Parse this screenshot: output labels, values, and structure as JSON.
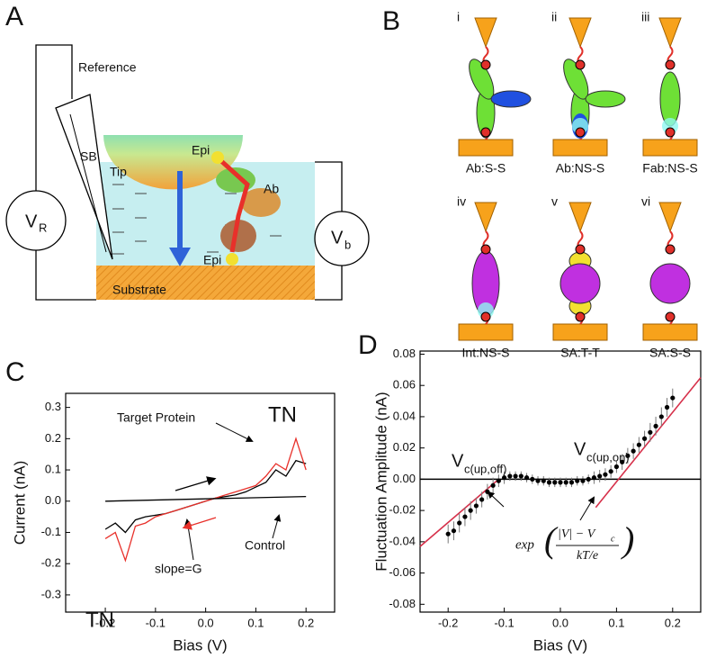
{
  "panel_labels": [
    "A",
    "B",
    "C",
    "D"
  ],
  "diagram_a": {
    "reference": "Reference",
    "sb": "SB",
    "tip": "Tip",
    "epi_top": "Epi",
    "ab": "Ab",
    "epi_bottom": "Epi",
    "v_r": "V",
    "v_r_sub": "R",
    "v_b": "V",
    "v_b_sub": "b",
    "substrate": "Substrate"
  },
  "diagram_b": {
    "items": [
      {
        "numeral": "i",
        "label": "Ab:S-S"
      },
      {
        "numeral": "ii",
        "label": "Ab:NS-S"
      },
      {
        "numeral": "iii",
        "label": "Fab:NS-S"
      },
      {
        "numeral": "iv",
        "label": "Int:NS-S"
      },
      {
        "numeral": "v",
        "label": "SA:T-T"
      },
      {
        "numeral": "vi",
        "label": "SA:S-S"
      }
    ]
  },
  "chart_data": [
    {
      "type": "line",
      "xlabel": "Bias (V)",
      "ylabel": "Current (nA)",
      "xlim": [
        -0.279,
        0.257
      ],
      "ylim": [
        -0.355,
        0.345
      ],
      "xticks": [
        -0.2,
        -0.1,
        {
          "value": 0,
          "label": "0.0"
        },
        0.1,
        0.2
      ],
      "yticks": [
        -0.3,
        -0.2,
        -0.1,
        {
          "value": 0,
          "label": "0.0"
        },
        0.1,
        0.2,
        0.3
      ],
      "series": [
        {
          "color": "#000000",
          "x": [
            -0.2,
            -0.18,
            -0.16,
            -0.14,
            -0.12,
            -0.1,
            -0.08,
            -0.06,
            -0.04,
            -0.02,
            0,
            0.02,
            0.04,
            0.06,
            0.08,
            0.1,
            0.12,
            0.14,
            0.16,
            0.18,
            0.2
          ],
          "values": [
            -0.09,
            -0.07,
            -0.1,
            -0.06,
            -0.05,
            -0.045,
            -0.04,
            -0.03,
            -0.02,
            -0.01,
            0.0,
            0.01,
            0.015,
            0.02,
            0.03,
            0.045,
            0.06,
            0.1,
            0.08,
            0.13,
            0.12
          ]
        },
        {
          "color": "#e8302a",
          "x": [
            -0.2,
            -0.18,
            -0.16,
            -0.14,
            -0.12,
            -0.1,
            -0.08,
            -0.06,
            -0.04,
            -0.02,
            0,
            0.02,
            0.04,
            0.06,
            0.08,
            0.1,
            0.12,
            0.14,
            0.16,
            0.18,
            0.2
          ],
          "values": [
            -0.12,
            -0.1,
            -0.19,
            -0.08,
            -0.07,
            -0.05,
            -0.04,
            -0.03,
            -0.02,
            -0.01,
            0.0,
            0.01,
            0.02,
            0.03,
            0.04,
            0.05,
            0.08,
            0.12,
            0.1,
            0.2,
            0.1
          ]
        },
        {
          "color": "#000000",
          "x": [
            -0.2,
            0.2
          ],
          "values": [
            0.0,
            0.015
          ]
        }
      ],
      "annotations": [
        "Target Protein",
        "TN",
        "TN",
        "Control",
        "slope=G"
      ]
    },
    {
      "type": "scatter",
      "xlabel": "Bias (V)",
      "ylabel": "Fluctuation Amplitude (nA)",
      "xlim": [
        -0.25,
        0.25
      ],
      "ylim": [
        -0.085,
        0.082
      ],
      "xticks": [
        -0.2,
        -0.1,
        {
          "value": 0,
          "label": "0.0"
        },
        0.1,
        0.2
      ],
      "yticks": [
        -0.08,
        -0.06,
        -0.04,
        -0.02,
        {
          "value": 0,
          "label": "0.00"
        },
        0.02,
        0.04,
        0.06,
        0.08
      ],
      "zero_line": true,
      "series": [
        {
          "color": "#000000",
          "x": [
            -0.2,
            -0.19,
            -0.18,
            -0.17,
            -0.16,
            -0.15,
            -0.14,
            -0.13,
            -0.12,
            -0.11,
            -0.1,
            -0.09,
            -0.08,
            -0.07,
            -0.06,
            -0.05,
            -0.04,
            -0.03,
            -0.02,
            -0.01,
            0,
            0.01,
            0.02,
            0.03,
            0.04,
            0.05,
            0.06,
            0.07,
            0.08,
            0.09,
            0.1,
            0.11,
            0.12,
            0.13,
            0.14,
            0.15,
            0.16,
            0.17,
            0.18,
            0.19,
            0.2
          ],
          "values": [
            -0.035,
            -0.033,
            -0.028,
            -0.024,
            -0.02,
            -0.017,
            -0.013,
            -0.008,
            -0.004,
            -0.001,
            0.001,
            0.002,
            0.002,
            0.002,
            0.001,
            0,
            -0.001,
            -0.001,
            -0.002,
            -0.002,
            -0.002,
            -0.002,
            -0.002,
            -0.001,
            -0.001,
            0,
            0.001,
            0.002,
            0.003,
            0.005,
            0.008,
            0.011,
            0.015,
            0.018,
            0.022,
            0.026,
            0.03,
            0.034,
            0.04,
            0.046,
            0.052
          ],
          "errors": [
            0.006,
            0.006,
            0.006,
            0.006,
            0.006,
            0.005,
            0.005,
            0.005,
            0.005,
            0.004,
            0.004,
            0.003,
            0.003,
            0.003,
            0.003,
            0.003,
            0.003,
            0.003,
            0.003,
            0.003,
            0.003,
            0.003,
            0.003,
            0.003,
            0.003,
            0.003,
            0.004,
            0.004,
            0.004,
            0.004,
            0.004,
            0.005,
            0.005,
            0.005,
            0.005,
            0.005,
            0.006,
            0.006,
            0.006,
            0.006,
            0.006
          ]
        }
      ],
      "fits": [
        {
          "color": "#d6304a",
          "x": [
            -0.25,
            -0.11
          ],
          "values": [
            -0.043,
            0.0
          ]
        },
        {
          "color": "#d6304a",
          "x": [
            0.063,
            0.25
          ],
          "values": [
            -0.018,
            0.065
          ]
        }
      ],
      "annotations": {
        "vc_off": "V",
        "vc_off_sub": "c(up,off)",
        "vc_on": "V",
        "vc_on_sub": "c(up,on)",
        "formula_fn": "exp",
        "formula_num": "|V| − V",
        "formula_num_sub": "c",
        "formula_den": "kT/e"
      }
    }
  ]
}
